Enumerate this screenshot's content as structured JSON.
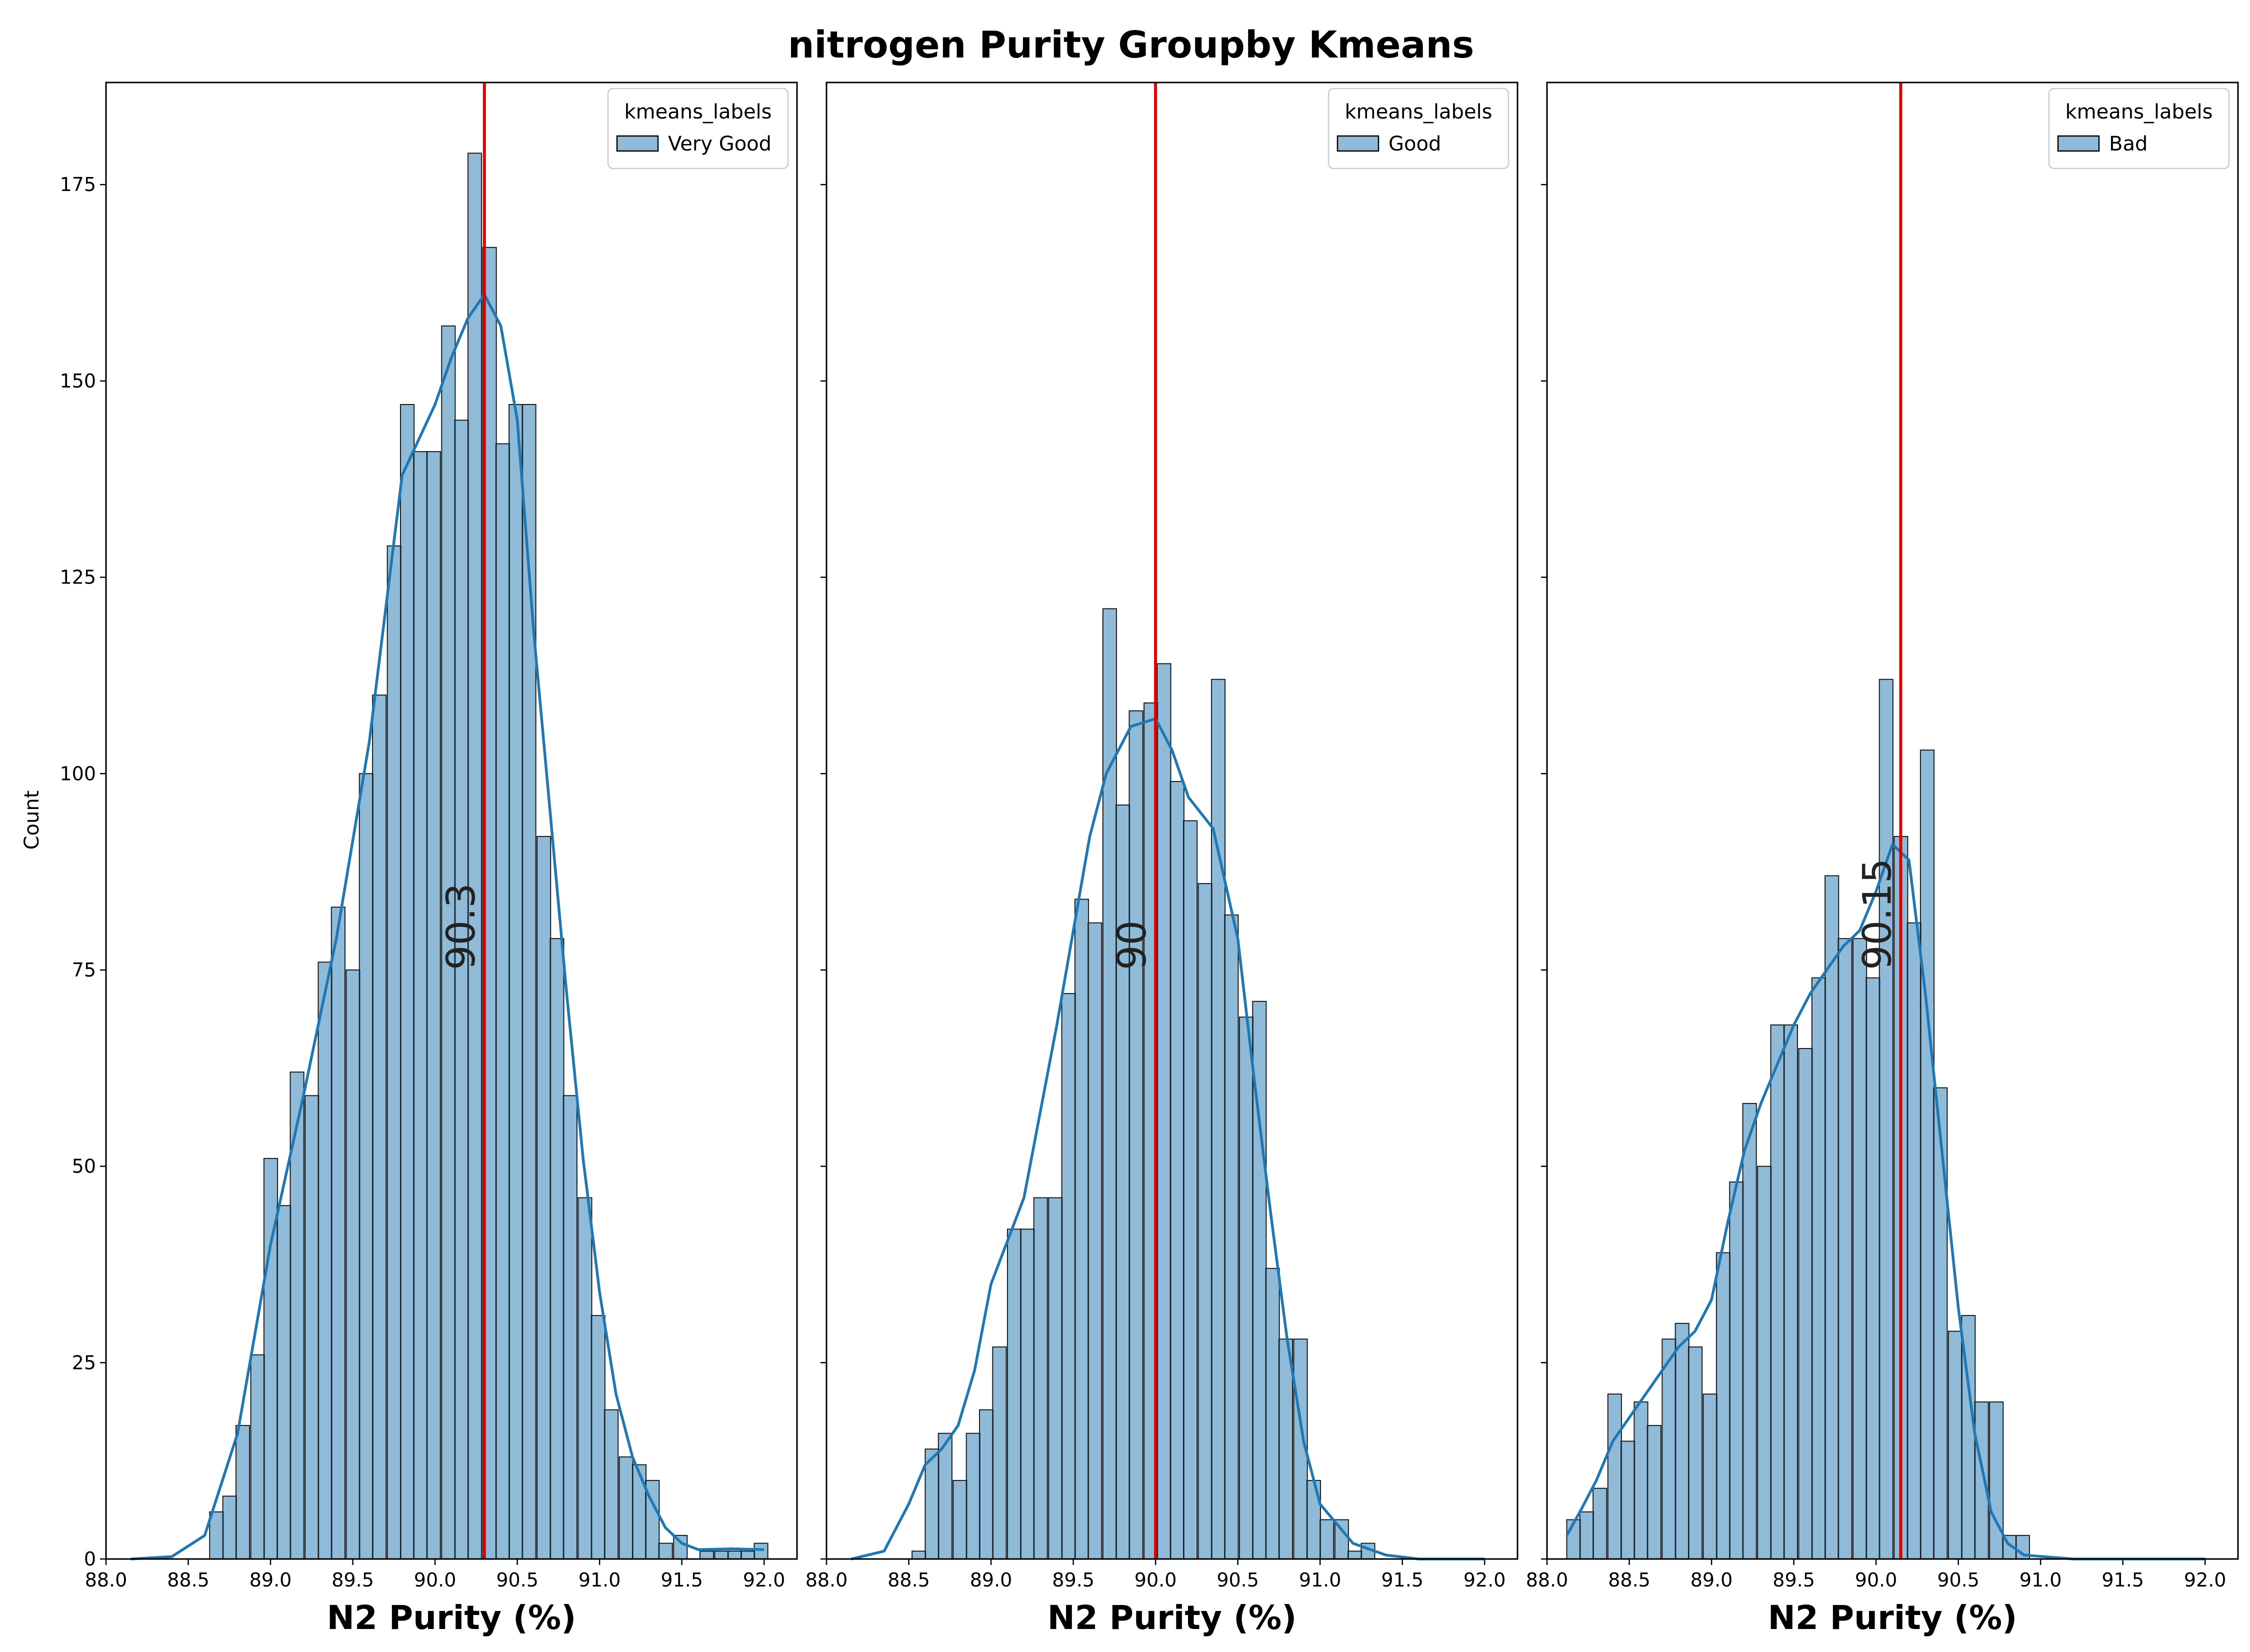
{
  "chart_data": {
    "type": "bar",
    "title": "nitrogen Purity Groupby Kmeans",
    "ylabel": "Count",
    "xlim": [
      88.0,
      92.2
    ],
    "ylim": [
      0,
      188
    ],
    "xticks": [
      "88.0",
      "88.5",
      "89.0",
      "89.5",
      "90.0",
      "90.5",
      "91.0",
      "91.5",
      "92.0"
    ],
    "yticks": [
      "0",
      "25",
      "50",
      "75",
      "100",
      "125",
      "150",
      "175"
    ],
    "bin_width": 0.0825,
    "colors": {
      "bar": "#1f77b4",
      "bar_fill_opacity": 0.5,
      "kde": "#1f77b4",
      "mean_line": "#e00000"
    },
    "legend_title": "kmeans_labels",
    "legend_location": "top-right",
    "panels": [
      {
        "xlabel": "N2 Purity (%)",
        "legend_label": "Very Good",
        "mean": 90.3,
        "mean_label": "90.3",
        "bins": [
          {
            "x": 88.63,
            "count": 6
          },
          {
            "x": 88.71,
            "count": 8
          },
          {
            "x": 88.79,
            "count": 17
          },
          {
            "x": 88.88,
            "count": 26
          },
          {
            "x": 88.96,
            "count": 51
          },
          {
            "x": 89.04,
            "count": 45
          },
          {
            "x": 89.12,
            "count": 62
          },
          {
            "x": 89.21,
            "count": 59
          },
          {
            "x": 89.29,
            "count": 76
          },
          {
            "x": 89.37,
            "count": 83
          },
          {
            "x": 89.46,
            "count": 75
          },
          {
            "x": 89.54,
            "count": 100
          },
          {
            "x": 89.62,
            "count": 110
          },
          {
            "x": 89.71,
            "count": 129
          },
          {
            "x": 89.79,
            "count": 147
          },
          {
            "x": 89.87,
            "count": 141
          },
          {
            "x": 89.95,
            "count": 141
          },
          {
            "x": 90.04,
            "count": 157
          },
          {
            "x": 90.12,
            "count": 145
          },
          {
            "x": 90.2,
            "count": 179
          },
          {
            "x": 90.29,
            "count": 167
          },
          {
            "x": 90.37,
            "count": 142
          },
          {
            "x": 90.45,
            "count": 147
          },
          {
            "x": 90.53,
            "count": 147
          },
          {
            "x": 90.62,
            "count": 92
          },
          {
            "x": 90.7,
            "count": 79
          },
          {
            "x": 90.78,
            "count": 59
          },
          {
            "x": 90.87,
            "count": 46
          },
          {
            "x": 90.95,
            "count": 31
          },
          {
            "x": 91.03,
            "count": 19
          },
          {
            "x": 91.12,
            "count": 13
          },
          {
            "x": 91.2,
            "count": 12
          },
          {
            "x": 91.28,
            "count": 10
          },
          {
            "x": 91.36,
            "count": 2
          },
          {
            "x": 91.45,
            "count": 3
          },
          {
            "x": 91.53,
            "count": 0
          },
          {
            "x": 91.61,
            "count": 1
          },
          {
            "x": 91.7,
            "count": 1
          },
          {
            "x": 91.78,
            "count": 1
          },
          {
            "x": 91.86,
            "count": 1
          },
          {
            "x": 91.94,
            "count": 2
          }
        ],
        "kde": [
          [
            88.15,
            0
          ],
          [
            88.4,
            0.3
          ],
          [
            88.6,
            3
          ],
          [
            88.8,
            16
          ],
          [
            89.0,
            40
          ],
          [
            89.2,
            59
          ],
          [
            89.4,
            79
          ],
          [
            89.6,
            104
          ],
          [
            89.8,
            138
          ],
          [
            90.0,
            147
          ],
          [
            90.1,
            153
          ],
          [
            90.2,
            158
          ],
          [
            90.3,
            161
          ],
          [
            90.4,
            157
          ],
          [
            90.5,
            145
          ],
          [
            90.6,
            118
          ],
          [
            90.7,
            95
          ],
          [
            90.8,
            72
          ],
          [
            90.9,
            51
          ],
          [
            91.0,
            34
          ],
          [
            91.1,
            21
          ],
          [
            91.2,
            13
          ],
          [
            91.3,
            8
          ],
          [
            91.4,
            4
          ],
          [
            91.5,
            2
          ],
          [
            91.6,
            1.2
          ],
          [
            91.8,
            1.3
          ],
          [
            92.0,
            1.2
          ]
        ]
      },
      {
        "xlabel": "N2 Purity (%)",
        "legend_label": "Good",
        "mean": 90.0,
        "mean_label": "90",
        "bins": [
          {
            "x": 88.52,
            "count": 1
          },
          {
            "x": 88.6,
            "count": 14
          },
          {
            "x": 88.68,
            "count": 16
          },
          {
            "x": 88.77,
            "count": 10
          },
          {
            "x": 88.85,
            "count": 16
          },
          {
            "x": 88.93,
            "count": 19
          },
          {
            "x": 89.01,
            "count": 27
          },
          {
            "x": 89.1,
            "count": 42
          },
          {
            "x": 89.18,
            "count": 42
          },
          {
            "x": 89.26,
            "count": 46
          },
          {
            "x": 89.35,
            "count": 46
          },
          {
            "x": 89.43,
            "count": 72
          },
          {
            "x": 89.51,
            "count": 84
          },
          {
            "x": 89.59,
            "count": 81
          },
          {
            "x": 89.68,
            "count": 121
          },
          {
            "x": 89.76,
            "count": 96
          },
          {
            "x": 89.84,
            "count": 108
          },
          {
            "x": 89.93,
            "count": 109
          },
          {
            "x": 90.01,
            "count": 114
          },
          {
            "x": 90.09,
            "count": 99
          },
          {
            "x": 90.17,
            "count": 94
          },
          {
            "x": 90.26,
            "count": 86
          },
          {
            "x": 90.34,
            "count": 112
          },
          {
            "x": 90.42,
            "count": 82
          },
          {
            "x": 90.51,
            "count": 69
          },
          {
            "x": 90.59,
            "count": 71
          },
          {
            "x": 90.67,
            "count": 37
          },
          {
            "x": 90.75,
            "count": 28
          },
          {
            "x": 90.84,
            "count": 28
          },
          {
            "x": 90.92,
            "count": 10
          },
          {
            "x": 91.0,
            "count": 5
          },
          {
            "x": 91.09,
            "count": 5
          },
          {
            "x": 91.17,
            "count": 1
          },
          {
            "x": 91.25,
            "count": 2
          }
        ],
        "kde": [
          [
            88.15,
            0
          ],
          [
            88.35,
            1
          ],
          [
            88.5,
            7
          ],
          [
            88.6,
            12
          ],
          [
            88.7,
            14
          ],
          [
            88.8,
            17
          ],
          [
            88.9,
            24
          ],
          [
            89.0,
            35
          ],
          [
            89.2,
            46
          ],
          [
            89.4,
            68
          ],
          [
            89.6,
            92
          ],
          [
            89.7,
            100
          ],
          [
            89.85,
            106
          ],
          [
            90.0,
            107
          ],
          [
            90.1,
            103
          ],
          [
            90.2,
            97
          ],
          [
            90.35,
            93
          ],
          [
            90.5,
            79
          ],
          [
            90.6,
            61
          ],
          [
            90.7,
            44
          ],
          [
            90.8,
            28
          ],
          [
            90.9,
            15
          ],
          [
            91.0,
            7
          ],
          [
            91.2,
            2
          ],
          [
            91.4,
            0.5
          ],
          [
            91.6,
            0
          ],
          [
            92.0,
            0
          ]
        ]
      },
      {
        "xlabel": "N2 Purity (%)",
        "legend_label": "Bad",
        "mean": 90.15,
        "mean_label": "90.15",
        "bins": [
          {
            "x": 88.12,
            "count": 5
          },
          {
            "x": 88.2,
            "count": 6
          },
          {
            "x": 88.28,
            "count": 9
          },
          {
            "x": 88.37,
            "count": 21
          },
          {
            "x": 88.45,
            "count": 15
          },
          {
            "x": 88.53,
            "count": 20
          },
          {
            "x": 88.61,
            "count": 17
          },
          {
            "x": 88.7,
            "count": 28
          },
          {
            "x": 88.78,
            "count": 30
          },
          {
            "x": 88.86,
            "count": 27
          },
          {
            "x": 88.95,
            "count": 21
          },
          {
            "x": 89.03,
            "count": 39
          },
          {
            "x": 89.11,
            "count": 48
          },
          {
            "x": 89.19,
            "count": 58
          },
          {
            "x": 89.28,
            "count": 50
          },
          {
            "x": 89.36,
            "count": 68
          },
          {
            "x": 89.44,
            "count": 68
          },
          {
            "x": 89.53,
            "count": 65
          },
          {
            "x": 89.61,
            "count": 74
          },
          {
            "x": 89.69,
            "count": 87
          },
          {
            "x": 89.77,
            "count": 79
          },
          {
            "x": 89.86,
            "count": 79
          },
          {
            "x": 89.94,
            "count": 74
          },
          {
            "x": 90.02,
            "count": 112
          },
          {
            "x": 90.11,
            "count": 92
          },
          {
            "x": 90.19,
            "count": 81
          },
          {
            "x": 90.27,
            "count": 103
          },
          {
            "x": 90.35,
            "count": 60
          },
          {
            "x": 90.44,
            "count": 29
          },
          {
            "x": 90.52,
            "count": 31
          },
          {
            "x": 90.6,
            "count": 20
          },
          {
            "x": 90.69,
            "count": 20
          },
          {
            "x": 90.77,
            "count": 3
          },
          {
            "x": 90.85,
            "count": 3
          }
        ],
        "kde": [
          [
            88.12,
            3
          ],
          [
            88.2,
            6
          ],
          [
            88.3,
            10
          ],
          [
            88.4,
            15
          ],
          [
            88.5,
            18
          ],
          [
            88.6,
            21
          ],
          [
            88.7,
            24
          ],
          [
            88.8,
            27
          ],
          [
            88.9,
            29
          ],
          [
            89.0,
            33
          ],
          [
            89.1,
            43
          ],
          [
            89.2,
            52
          ],
          [
            89.3,
            58
          ],
          [
            89.4,
            63
          ],
          [
            89.5,
            68
          ],
          [
            89.6,
            72
          ],
          [
            89.7,
            75
          ],
          [
            89.8,
            78
          ],
          [
            89.9,
            80
          ],
          [
            90.0,
            85
          ],
          [
            90.1,
            91
          ],
          [
            90.2,
            89
          ],
          [
            90.3,
            72
          ],
          [
            90.4,
            52
          ],
          [
            90.5,
            32
          ],
          [
            90.6,
            16
          ],
          [
            90.7,
            6
          ],
          [
            90.8,
            2
          ],
          [
            90.9,
            0.5
          ],
          [
            91.2,
            0
          ],
          [
            92.0,
            0
          ]
        ]
      }
    ]
  }
}
